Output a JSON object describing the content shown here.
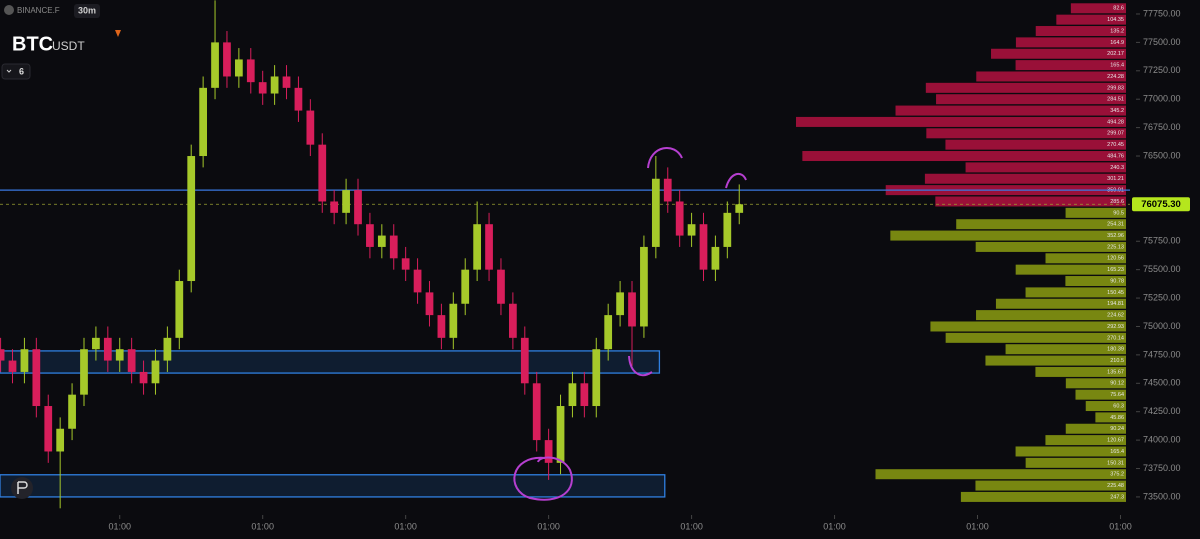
{
  "chart_data": {
    "type": "candlestick",
    "exchange": "BINANCE.F",
    "interval": "30m",
    "base": "BTC",
    "quote": "USDT",
    "indicator_count": 6,
    "up_color": "#a6c92a",
    "down_color": "#d81e5b",
    "x": [
      -20,
      -18,
      -16,
      -14,
      -12,
      -10,
      -8,
      -6,
      -4,
      -2,
      0,
      2,
      4,
      6,
      8,
      10,
      12,
      14,
      16,
      18,
      20,
      22,
      24,
      26,
      28,
      30,
      32,
      34,
      36,
      38,
      40,
      42,
      44,
      46,
      48,
      50,
      52,
      54,
      56,
      58,
      60,
      62,
      64,
      66,
      68,
      70,
      72,
      74,
      76,
      78,
      80,
      82,
      84,
      86,
      88,
      90,
      92,
      94,
      96,
      98,
      100,
      102,
      104
    ],
    "open": [
      74800,
      74700,
      74600,
      74800,
      74300,
      73900,
      74100,
      74400,
      74800,
      74900,
      74700,
      74800,
      74600,
      74500,
      74700,
      74900,
      75400,
      76500,
      77100,
      77500,
      77200,
      77350,
      77150,
      77050,
      77200,
      77100,
      76900,
      76600,
      76100,
      76000,
      76200,
      75900,
      75700,
      75800,
      75600,
      75500,
      75300,
      75100,
      74900,
      75200,
      75500,
      75900,
      75500,
      75200,
      74900,
      74500,
      74000,
      73800,
      74300,
      74500,
      74300,
      74800,
      75100,
      75300,
      75000,
      75700,
      76300,
      76100,
      75800,
      75900,
      75500,
      75700,
      76000
    ],
    "high": [
      74900,
      74800,
      74900,
      74900,
      74400,
      74200,
      74500,
      74900,
      75000,
      75000,
      74900,
      74900,
      74700,
      74800,
      75000,
      75500,
      76600,
      77200,
      77870,
      77600,
      77450,
      77450,
      77250,
      77300,
      77300,
      77200,
      77000,
      76700,
      76200,
      76300,
      76300,
      76000,
      75900,
      75900,
      75700,
      75600,
      75400,
      75200,
      75300,
      75600,
      76100,
      76000,
      75600,
      75300,
      75000,
      74600,
      74100,
      74400,
      74600,
      74600,
      74900,
      75200,
      75400,
      75400,
      75800,
      76500,
      76400,
      76200,
      76000,
      76000,
      75800,
      76100,
      76250
    ],
    "low": [
      74600,
      74500,
      74500,
      74200,
      73800,
      73400,
      74000,
      74300,
      74700,
      74600,
      74600,
      74500,
      74400,
      74400,
      74600,
      74800,
      75300,
      76400,
      77000,
      77100,
      77100,
      77050,
      76950,
      76950,
      77000,
      76800,
      76500,
      76000,
      75900,
      75900,
      75800,
      75600,
      75600,
      75500,
      75400,
      75200,
      75000,
      74800,
      74800,
      75100,
      75400,
      75400,
      75100,
      74800,
      74400,
      73900,
      73650,
      73700,
      74200,
      74200,
      74200,
      74700,
      75000,
      74650,
      74900,
      75600,
      76000,
      75700,
      75700,
      75400,
      75400,
      75600,
      75900
    ],
    "close": [
      74700,
      74600,
      74800,
      74300,
      73900,
      74100,
      74400,
      74800,
      74900,
      74700,
      74800,
      74600,
      74500,
      74700,
      74900,
      75400,
      76500,
      77100,
      77500,
      77200,
      77350,
      77150,
      77050,
      77200,
      77100,
      76900,
      76600,
      76100,
      76000,
      76200,
      75900,
      75700,
      75800,
      75600,
      75500,
      75300,
      75100,
      74900,
      75200,
      75500,
      75900,
      75500,
      75200,
      74900,
      74500,
      74000,
      73800,
      74300,
      74500,
      74300,
      74800,
      75100,
      75300,
      75000,
      75700,
      76300,
      76100,
      75800,
      75900,
      75500,
      75700,
      76000,
      76075.3
    ],
    "xlim": [
      -20.1,
      169.6
    ],
    "xticks": [
      {
        "value": 0,
        "label": "01:00"
      },
      {
        "value": 24,
        "label": "01:00"
      },
      {
        "value": 48,
        "label": "01:00"
      },
      {
        "value": 72,
        "label": "01:00"
      },
      {
        "value": 96,
        "label": "01:00"
      },
      {
        "value": 120,
        "label": "01:00"
      },
      {
        "value": 144,
        "label": "01:00"
      },
      {
        "value": 168,
        "label": "01:00"
      }
    ],
    "ylim": [
      73341,
      77873
    ],
    "yticks": [
      {
        "value": 77750,
        "label": "77750.00"
      },
      {
        "value": 77500,
        "label": "77500.00"
      },
      {
        "value": 77250,
        "label": "77250.00"
      },
      {
        "value": 77000,
        "label": "77000.00"
      },
      {
        "value": 76750,
        "label": "76750.00"
      },
      {
        "value": 76500,
        "label": "76500.00"
      },
      {
        "value": 75750,
        "label": "75750.00"
      },
      {
        "value": 75500,
        "label": "75500.00"
      },
      {
        "value": 75250,
        "label": "75250.00"
      },
      {
        "value": 75000,
        "label": "75000.00"
      },
      {
        "value": 74750,
        "label": "74750.00"
      },
      {
        "value": 74500,
        "label": "74500.00"
      },
      {
        "value": 74250,
        "label": "74250.00"
      },
      {
        "value": 74000,
        "label": "74000.00"
      },
      {
        "value": 73750,
        "label": "73750.00"
      },
      {
        "value": 73500,
        "label": "73500.00"
      }
    ],
    "current_price": {
      "value": 76075.3,
      "label": "76075.30"
    },
    "level_line": 76200,
    "zones": [
      {
        "low": 74590,
        "high": 74785,
        "x_end": 90.6
      },
      {
        "low": 73500,
        "high": 73695,
        "x_end": 91.5
      }
    ],
    "depth": {
      "ask_color": "#b3123f",
      "bid_color": "#8c9d12",
      "ask_prices": [
        77800,
        77700,
        77600,
        77500,
        77400,
        77300,
        77200,
        77100,
        77000,
        76900,
        76800,
        76700,
        76600,
        76500,
        76400,
        76300,
        76200,
        76100
      ],
      "ask_sizes": [
        82.6,
        104.35,
        135.2,
        164.9,
        202.17,
        165.4,
        224.28,
        299.83,
        284.51,
        345.2,
        494.28,
        299.07,
        270.45,
        484.76,
        240.3,
        301.21,
        359.91,
        285.6
      ],
      "bid_prices": [
        76000,
        75900,
        75800,
        75700,
        75600,
        75500,
        75400,
        75300,
        75200,
        75100,
        75000,
        74900,
        74800,
        74700,
        74600,
        74500,
        74400,
        74300,
        74200,
        74100,
        74000,
        73900,
        73800,
        73700,
        73600,
        73500
      ],
      "bid_sizes": [
        90.5,
        254.31,
        352.96,
        225.13,
        120.56,
        165.23,
        90.78,
        150.45,
        194.81,
        224.62,
        292.93,
        270.14,
        180.39,
        210.5,
        135.67,
        90.12,
        75.64,
        60.3,
        45.86,
        90.24,
        120.67,
        165.4,
        150.31,
        375.2,
        225.48,
        247.3
      ]
    }
  }
}
